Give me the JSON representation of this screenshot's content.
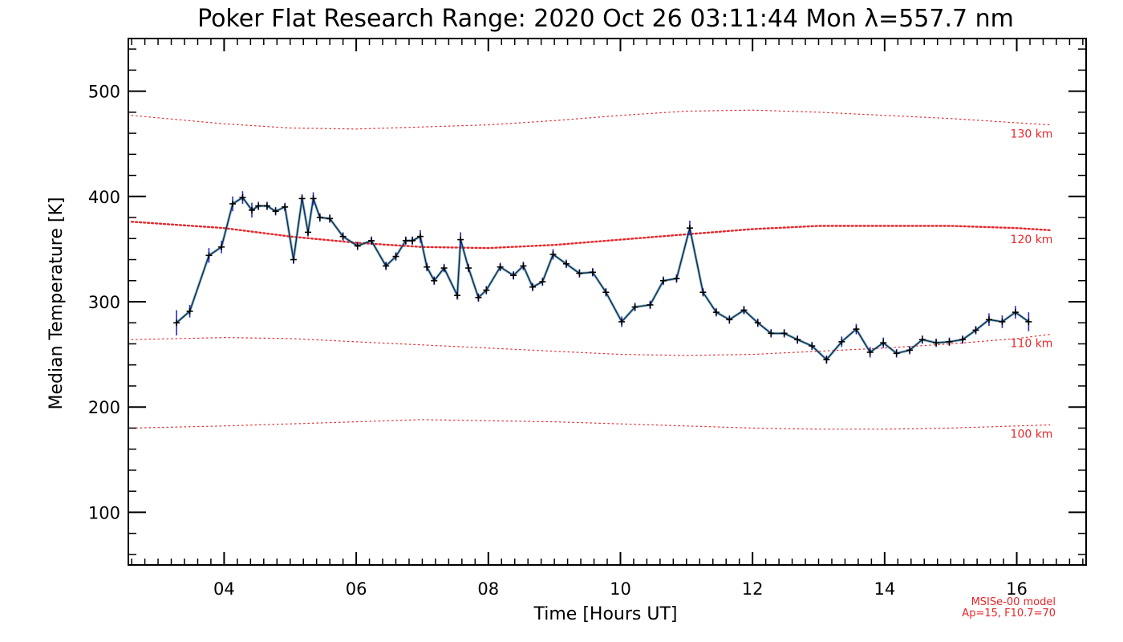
{
  "chart_data": {
    "type": "line",
    "title": "Poker Flat Research Range: 2020 Oct 26 03:11:44 Mon λ=557.7 nm",
    "xlabel": "Time [Hours UT]",
    "ylabel": "Median Temperature [K]",
    "xlim": [
      2.55,
      17.05
    ],
    "ylim": [
      50,
      550
    ],
    "x_ticks": [
      4,
      6,
      8,
      10,
      12,
      14,
      16
    ],
    "x_tick_labels": [
      "04",
      "06",
      "08",
      "10",
      "12",
      "14",
      "16"
    ],
    "y_ticks": [
      100,
      200,
      300,
      400,
      500
    ],
    "y_tick_labels": [
      "100",
      "200",
      "300",
      "400",
      "500"
    ],
    "grid": false,
    "series": [
      {
        "role": "measurement",
        "color": "#0d2b57",
        "errorbar_color": "#2a2ad0",
        "x": [
          3.28,
          3.48,
          3.77,
          3.96,
          4.13,
          4.28,
          4.42,
          4.52,
          4.65,
          4.78,
          4.92,
          5.05,
          5.18,
          5.27,
          5.35,
          5.45,
          5.6,
          5.8,
          6.02,
          6.23,
          6.45,
          6.6,
          6.75,
          6.85,
          6.97,
          7.07,
          7.18,
          7.33,
          7.53,
          7.58,
          7.7,
          7.85,
          7.97,
          8.18,
          8.38,
          8.53,
          8.67,
          8.82,
          8.98,
          9.18,
          9.38,
          9.58,
          9.78,
          10.02,
          10.22,
          10.45,
          10.65,
          10.85,
          11.05,
          11.25,
          11.45,
          11.65,
          11.87,
          12.08,
          12.28,
          12.48,
          12.68,
          12.9,
          13.12,
          13.35,
          13.57,
          13.78,
          13.98,
          14.18,
          14.38,
          14.57,
          14.78,
          14.98,
          15.18,
          15.38,
          15.58,
          15.78,
          15.98,
          16.18
        ],
        "y": [
          280,
          291,
          344,
          352,
          393,
          399,
          387,
          391,
          391,
          386,
          390,
          340,
          398,
          366,
          398,
          380,
          379,
          362,
          353,
          358,
          334,
          343,
          358,
          358,
          362,
          333,
          320,
          332,
          306,
          359,
          332,
          304,
          311,
          333,
          325,
          334,
          314,
          319,
          345,
          336,
          327,
          328,
          309,
          281,
          295,
          297,
          320,
          322,
          370,
          309,
          290,
          283,
          292,
          280,
          270,
          270,
          264,
          258,
          245,
          262,
          274,
          252,
          261,
          251,
          254,
          264,
          261,
          262,
          264,
          273,
          283,
          281,
          290,
          281
        ],
        "error": [
          12,
          6,
          7,
          6,
          7,
          6,
          7,
          4,
          4,
          4,
          4,
          4,
          4,
          4,
          6,
          4,
          4,
          4,
          4,
          4,
          4,
          4,
          4,
          4,
          6,
          4,
          4,
          4,
          4,
          7,
          4,
          4,
          4,
          4,
          4,
          4,
          4,
          4,
          5,
          4,
          4,
          4,
          4,
          5,
          4,
          4,
          4,
          4,
          7,
          4,
          4,
          4,
          4,
          4,
          4,
          4,
          4,
          4,
          4,
          5,
          5,
          5,
          5,
          4,
          4,
          4,
          4,
          4,
          4,
          4,
          6,
          6,
          6,
          9
        ]
      },
      {
        "name": "130 km",
        "role": "model",
        "color": "#e8262a",
        "x": [
          2.6,
          4.0,
          5.0,
          6.0,
          7.0,
          8.0,
          9.0,
          10.0,
          11.0,
          12.0,
          13.0,
          14.0,
          15.0,
          16.0,
          16.5
        ],
        "y": [
          477,
          469,
          465,
          464,
          466,
          468,
          472,
          477,
          481,
          482,
          480,
          477,
          474,
          470,
          468
        ]
      },
      {
        "name": "120 km",
        "role": "model",
        "color": "#e8262a",
        "x": [
          2.6,
          4.0,
          5.0,
          6.0,
          7.0,
          8.0,
          9.0,
          10.0,
          11.0,
          12.0,
          13.0,
          14.0,
          15.0,
          16.0,
          16.5
        ],
        "y": [
          376,
          370,
          362,
          356,
          352,
          351,
          354,
          359,
          364,
          369,
          372,
          372,
          372,
          370,
          368
        ]
      },
      {
        "name": "110 km",
        "role": "model",
        "color": "#e8262a",
        "x": [
          2.6,
          4.0,
          5.0,
          6.0,
          7.0,
          8.0,
          9.0,
          10.0,
          11.0,
          12.0,
          13.0,
          14.0,
          15.0,
          16.0,
          16.5
        ],
        "y": [
          264,
          266,
          265,
          262,
          259,
          256,
          253,
          250,
          249,
          250,
          253,
          256,
          260,
          265,
          269
        ]
      },
      {
        "name": "100 km",
        "role": "model",
        "color": "#e8262a",
        "x": [
          2.6,
          4.0,
          5.0,
          6.0,
          7.0,
          8.0,
          9.0,
          10.0,
          11.0,
          12.0,
          13.0,
          14.0,
          15.0,
          16.0,
          16.5
        ],
        "y": [
          180,
          182,
          184,
          186,
          188,
          187,
          186,
          184,
          182,
          180,
          179,
          179,
          180,
          182,
          183
        ]
      }
    ],
    "annotations": [
      "MSISe-00 model",
      "Ap=15, F10.7=70"
    ]
  }
}
